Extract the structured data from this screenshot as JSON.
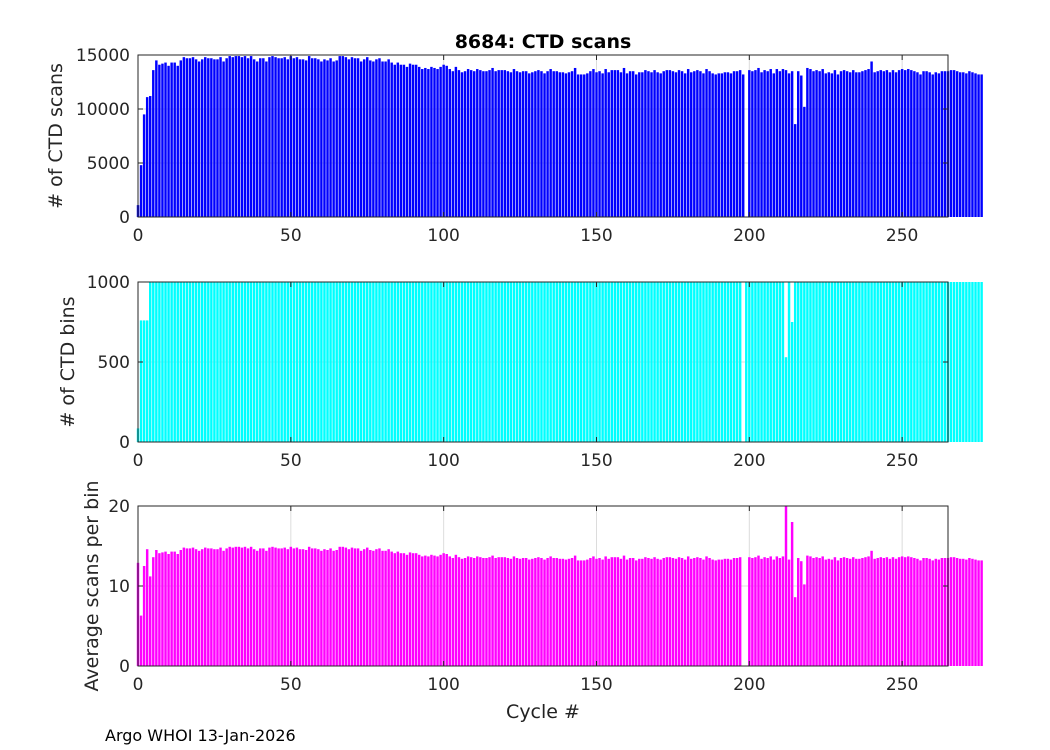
{
  "figure": {
    "title": "8684: CTD scans",
    "footer": "Argo WHOI 13-Jan-2026",
    "shared_xlabel": "Cycle #"
  },
  "chart_data": [
    {
      "type": "bar",
      "panel": "top",
      "title": "8684: CTD scans",
      "ylabel": "# of CTD scans",
      "xlabel": "",
      "xlim": [
        0,
        265
      ],
      "ylim": [
        0,
        15000
      ],
      "xticks": [
        0,
        50,
        100,
        150,
        200,
        250
      ],
      "yticks": [
        0,
        5000,
        10000,
        15000
      ],
      "grid": true,
      "color": "#0000ff",
      "x_start": 0,
      "missing_cycles": [
        198
      ],
      "values": [
        1100,
        4800,
        9500,
        11100,
        11200,
        13600,
        14500,
        14100,
        14200,
        14300,
        14000,
        14300,
        14300,
        14000,
        14500,
        14800,
        14700,
        14700,
        14800,
        14600,
        14400,
        14600,
        14800,
        14700,
        14700,
        14600,
        14600,
        14800,
        14400,
        14700,
        14900,
        14800,
        14900,
        14900,
        14800,
        14900,
        14700,
        14900,
        14600,
        14400,
        14700,
        14700,
        14400,
        14800,
        14900,
        14800,
        14700,
        14700,
        14800,
        14600,
        14900,
        14700,
        14800,
        14600,
        14600,
        14500,
        14900,
        14700,
        14700,
        14600,
        14400,
        14600,
        14500,
        14700,
        14400,
        14500,
        14900,
        14900,
        14800,
        14600,
        14800,
        14700,
        14700,
        14400,
        14600,
        14800,
        14500,
        14400,
        14600,
        14700,
        14400,
        14400,
        14600,
        14300,
        14100,
        14300,
        14100,
        14100,
        13900,
        14200,
        14100,
        14100,
        13900,
        13700,
        13800,
        13700,
        13900,
        13800,
        13700,
        13900,
        14100,
        14000,
        13700,
        13500,
        13900,
        13600,
        13400,
        13500,
        13700,
        13600,
        13500,
        13700,
        13600,
        13500,
        13500,
        13600,
        13800,
        13500,
        13600,
        13600,
        13600,
        13500,
        13400,
        13700,
        13500,
        13400,
        13500,
        13500,
        13300,
        13400,
        13500,
        13600,
        13500,
        13300,
        13500,
        13700,
        13500,
        13500,
        13400,
        13400,
        13300,
        13400,
        13500,
        13800,
        13200,
        13200,
        13200,
        13300,
        13500,
        13700,
        13400,
        13500,
        13300,
        13700,
        13400,
        13600,
        13600,
        13600,
        13400,
        13800,
        13300,
        13500,
        13500,
        13200,
        13400,
        13400,
        13600,
        13500,
        13400,
        13600,
        13400,
        13300,
        13500,
        13600,
        13600,
        13500,
        13400,
        13600,
        13500,
        13300,
        13700,
        13400,
        13500,
        13600,
        13500,
        13300,
        13700,
        13500,
        13300,
        13200,
        13300,
        13300,
        13400,
        13400,
        13300,
        13500,
        13500,
        13600,
        13200,
        0,
        13600,
        13500,
        13600,
        13800,
        13400,
        13600,
        13500,
        13700,
        13300,
        13700,
        13500,
        13700,
        13600,
        13300,
        13500,
        8600,
        13500,
        13100,
        10200,
        13800,
        13700,
        13500,
        13600,
        13500,
        13700,
        13300,
        13400,
        13300,
        13600,
        13200,
        13500,
        13600,
        13500,
        13400,
        13600,
        13400,
        13400,
        13500,
        13600,
        13700,
        14400,
        13400,
        13500,
        13600,
        13500,
        13600,
        13400,
        13600,
        13400,
        13600,
        13700,
        13600,
        13700,
        13600,
        13500,
        13400,
        13200,
        13500,
        13500,
        13400,
        13200,
        13400,
        13300,
        13500,
        13500,
        13500,
        13600,
        13600,
        13500,
        13400,
        13400,
        13300,
        13500,
        13400,
        13300,
        13200,
        13200
      ]
    },
    {
      "type": "bar",
      "panel": "middle",
      "title": "",
      "ylabel": "# of CTD bins",
      "xlabel": "",
      "xlim": [
        0,
        265
      ],
      "ylim": [
        0,
        1000
      ],
      "xticks": [
        0,
        50,
        100,
        150,
        200,
        250
      ],
      "yticks": [
        0,
        500,
        1000
      ],
      "grid": true,
      "color": "#00ffff",
      "x_start": 0,
      "missing_cycles": [
        198
      ],
      "special_values": {
        "0": 85,
        "1": 760,
        "2": 760,
        "3": 760,
        "212": 530,
        "214": 750
      },
      "default_value": 1000,
      "values": []
    },
    {
      "type": "bar",
      "panel": "bottom",
      "title": "",
      "ylabel": "Average scans per bin",
      "xlabel": "Cycle #",
      "xlim": [
        0,
        265
      ],
      "ylim": [
        0,
        20
      ],
      "xticks": [
        0,
        50,
        100,
        150,
        200,
        250
      ],
      "yticks": [
        0,
        10,
        20
      ],
      "grid": true,
      "color": "#ff00ff",
      "x_start": 0,
      "missing_cycles": [
        198
      ],
      "values": []
    }
  ]
}
